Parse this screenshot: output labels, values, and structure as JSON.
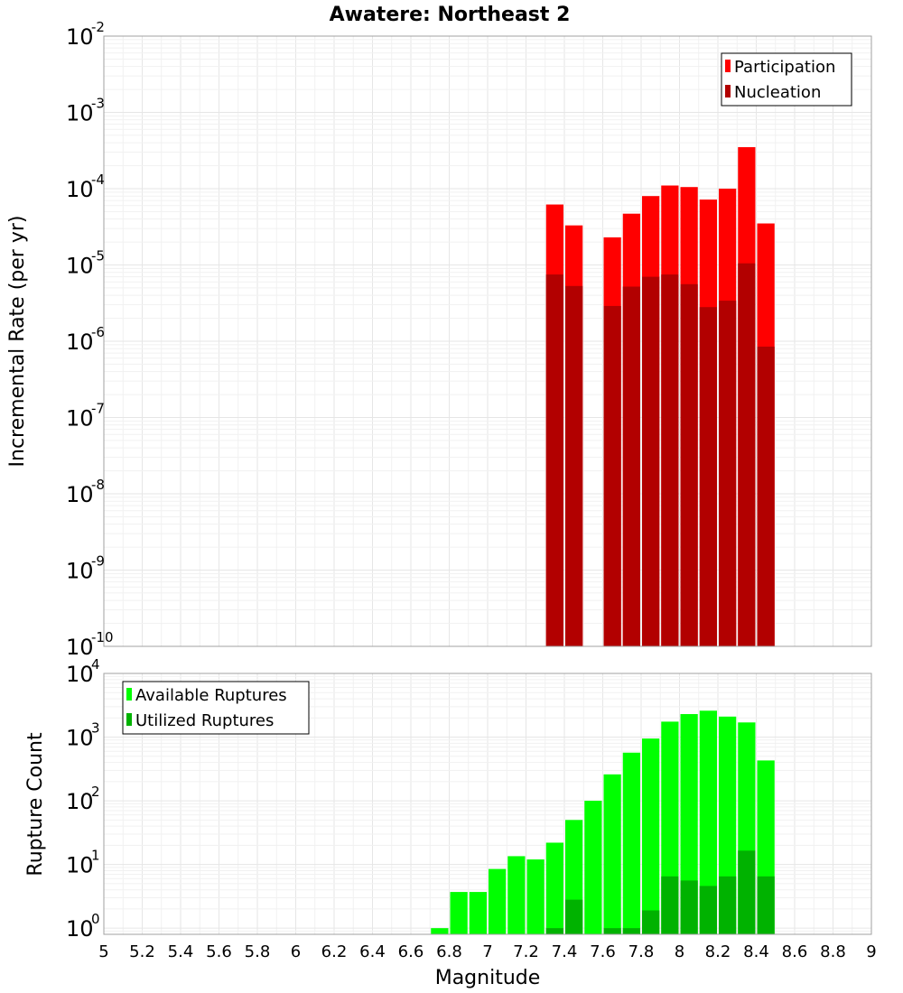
{
  "chart_data": [
    {
      "type": "bar",
      "title": "Awatere: Northeast 2",
      "xlabel": "",
      "ylabel": "Incremental Rate (per yr)",
      "y_scale": "log",
      "ylim": [
        1e-10,
        0.01
      ],
      "xlim": [
        5,
        9
      ],
      "grid": true,
      "legend_position": "top-right",
      "bar_width": 0.1,
      "x": [
        7.35,
        7.45,
        7.55,
        7.65,
        7.75,
        7.85,
        7.95,
        8.05,
        8.15,
        8.25,
        8.35,
        8.45
      ],
      "series": [
        {
          "name": "Participation",
          "color": "#ff0000",
          "values": [
            6.2e-05,
            3.3e-05,
            null,
            2.3e-05,
            4.7e-05,
            8e-05,
            0.00011,
            0.000105,
            7.2e-05,
            0.0001,
            0.00035,
            3.5e-05
          ]
        },
        {
          "name": "Nucleation",
          "color": "#b20000",
          "values": [
            7.5e-06,
            5.3e-06,
            null,
            2.9e-06,
            5.2e-06,
            7e-06,
            7.5e-06,
            5.6e-06,
            2.8e-06,
            3.4e-06,
            1.05e-05,
            8.5e-07
          ]
        }
      ]
    },
    {
      "type": "bar",
      "title": "",
      "xlabel": "Magnitude",
      "ylabel": "Rupture Count",
      "y_scale": "log",
      "ylim": [
        0.8,
        10000.0
      ],
      "xlim": [
        5,
        9
      ],
      "grid": true,
      "legend_position": "top-left",
      "bar_width": 0.1,
      "x": [
        6.75,
        6.85,
        6.95,
        7.05,
        7.15,
        7.25,
        7.35,
        7.45,
        7.55,
        7.65,
        7.75,
        7.85,
        7.95,
        8.05,
        8.15,
        8.25,
        8.35,
        8.45
      ],
      "series": [
        {
          "name": "Available Ruptures",
          "color": "#00ff00",
          "values": [
            1,
            3.7,
            3.7,
            8.5,
            13.5,
            12,
            22,
            50,
            100,
            260,
            570,
            950,
            1750,
            2300,
            2600,
            2100,
            1700,
            430
          ]
        },
        {
          "name": "Utilized Ruptures",
          "color": "#00b200",
          "values": [
            null,
            null,
            null,
            null,
            null,
            null,
            1,
            2.8,
            null,
            1,
            1,
            1.9,
            6.5,
            5.6,
            4.6,
            6.5,
            16.5,
            6.5
          ]
        }
      ],
      "x_ticks": [
        "5",
        "5.2",
        "5.4",
        "5.6",
        "5.8",
        "6",
        "6.2",
        "6.4",
        "6.6",
        "6.8",
        "7",
        "7.2",
        "7.4",
        "7.6",
        "7.8",
        "8",
        "8.2",
        "8.4",
        "8.6",
        "8.8",
        "9"
      ]
    }
  ]
}
